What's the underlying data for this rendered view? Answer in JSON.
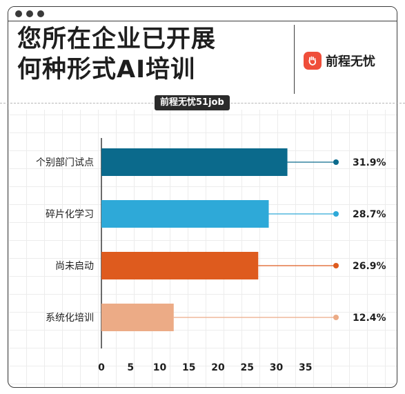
{
  "header": {
    "title": "您所在企业已开展\n何种形式AI培训",
    "logo_text": "前程无忧",
    "source_badge": "前程无忧51job"
  },
  "colors": {
    "bar_1": "#0b6a8c",
    "bar_2": "#2ea9d8",
    "bar_3": "#de5b1e",
    "bar_4": "#ecab86",
    "logo_red": "#ef4e3a"
  },
  "chart_data": {
    "type": "bar",
    "orientation": "horizontal",
    "categories": [
      "个别部门试点",
      "碎片化学习",
      "尚未启动",
      "系统化培训"
    ],
    "values": [
      31.9,
      28.7,
      26.9,
      12.4
    ],
    "value_labels": [
      "31.9%",
      "28.7%",
      "26.9%",
      "12.4%"
    ],
    "xlim": [
      0,
      35
    ],
    "xticks": [
      "0",
      "5",
      "10",
      "15",
      "20",
      "25",
      "30",
      "35"
    ],
    "grid": true,
    "legend": "none"
  }
}
